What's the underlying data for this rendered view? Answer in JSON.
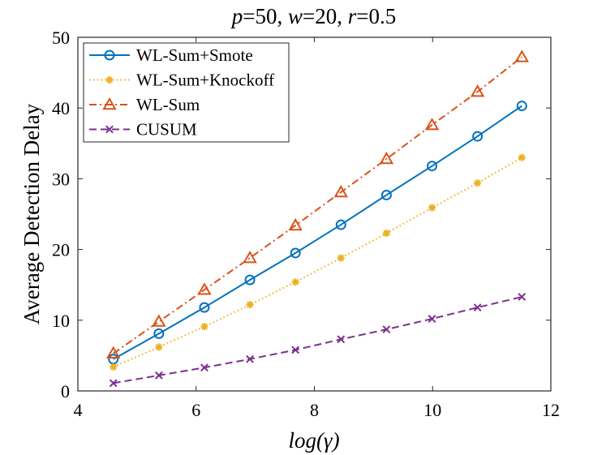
{
  "chart_data": {
    "type": "line",
    "title": {
      "p_var": "p",
      "p_val": "=50, ",
      "w_var": "w",
      "w_val": "=20, ",
      "r_var": "r",
      "r_val": "=0.5"
    },
    "xlabel": "log(γ)",
    "ylabel": "Average Detection Delay",
    "xlim": [
      4,
      12
    ],
    "ylim": [
      0,
      50
    ],
    "xticks": [
      4,
      6,
      8,
      10,
      12
    ],
    "yticks": [
      0,
      10,
      20,
      30,
      40,
      50
    ],
    "x": [
      4.6,
      5.37,
      6.14,
      6.91,
      7.68,
      8.45,
      9.22,
      9.99,
      10.76,
      11.51
    ],
    "series": [
      {
        "name": "WL-Sum+Smote",
        "color": "#0072BD",
        "marker": "circle",
        "dash": "solid",
        "values": [
          4.5,
          8.1,
          11.8,
          15.7,
          19.5,
          23.5,
          27.7,
          31.8,
          36.0,
          40.3
        ]
      },
      {
        "name": "WL-Sum+Knockoff",
        "color": "#EDB120",
        "marker": "star",
        "dash": "dotted",
        "values": [
          3.4,
          6.2,
          9.1,
          12.2,
          15.4,
          18.8,
          22.3,
          25.9,
          29.4,
          33.0
        ]
      },
      {
        "name": "WL-Sum",
        "color": "#D95319",
        "marker": "triangle",
        "dash": "dashdot",
        "values": [
          5.3,
          9.8,
          14.3,
          18.8,
          23.4,
          28.1,
          32.8,
          37.6,
          42.3,
          47.2
        ]
      },
      {
        "name": "CUSUM",
        "color": "#7E2F8E",
        "marker": "x",
        "dash": "dashed",
        "values": [
          1.1,
          2.2,
          3.3,
          4.5,
          5.8,
          7.3,
          8.7,
          10.2,
          11.8,
          13.3
        ]
      }
    ],
    "legend_position": "top-left"
  }
}
